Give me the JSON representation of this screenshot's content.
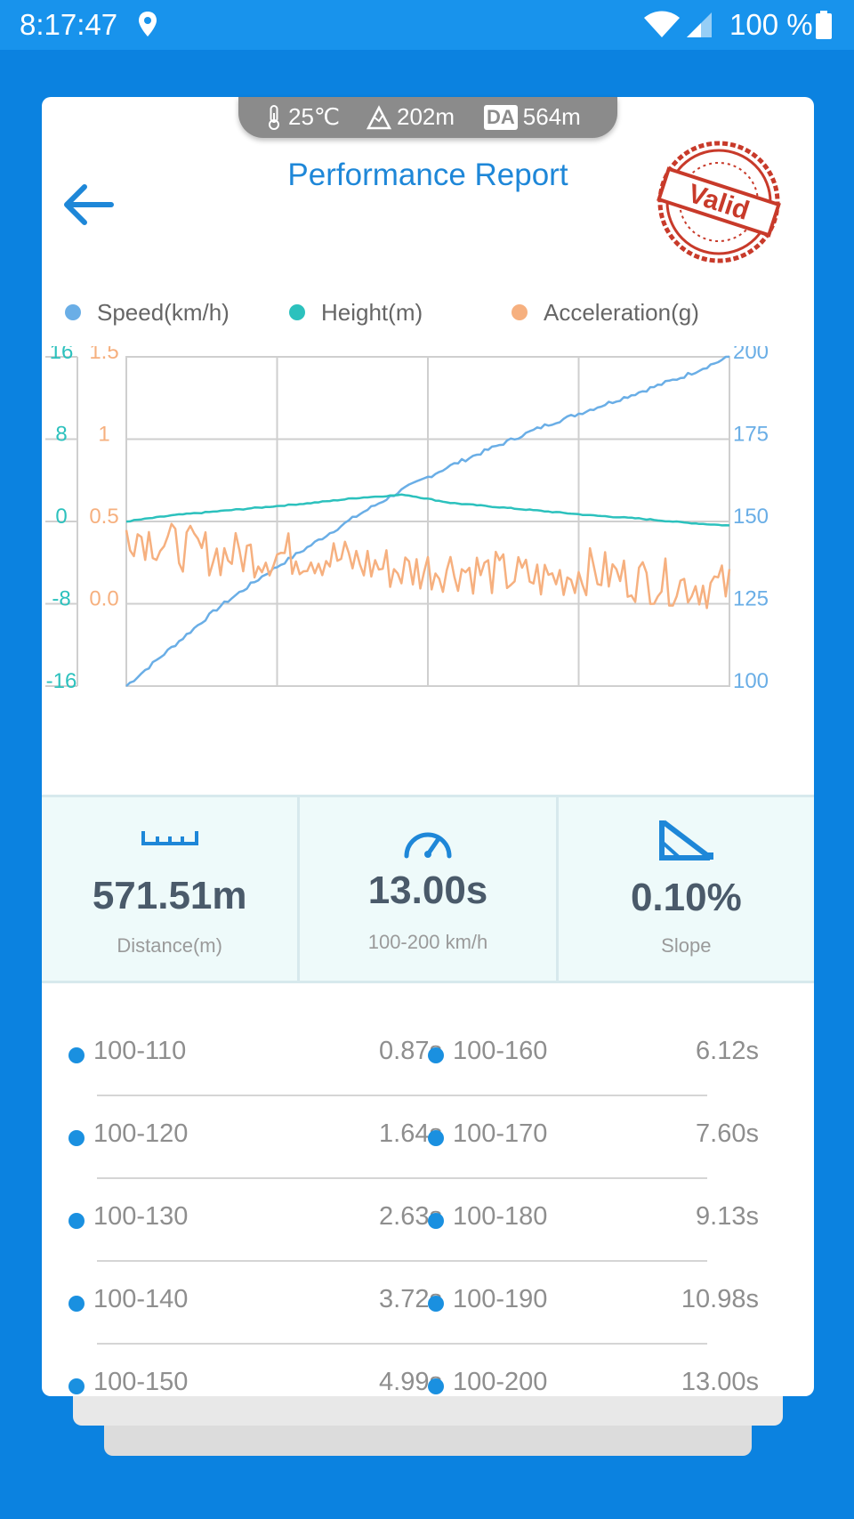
{
  "status_bar": {
    "time": "8:17:47",
    "battery": "100 %"
  },
  "environment": {
    "temperature": "25℃",
    "altitude": "202m",
    "da_label": "DA",
    "density_altitude": "564m"
  },
  "header": {
    "title": "Performance Report",
    "stamp_text": "Valid"
  },
  "legend": [
    {
      "label": "Speed(km/h)",
      "color": "#6aaee6"
    },
    {
      "label": "Height(m)",
      "color": "#2cc1bd"
    },
    {
      "label": "Acceleration(g)",
      "color": "#f6b07f"
    }
  ],
  "chart_data": {
    "type": "line",
    "x": [
      0,
      1,
      2,
      3,
      4,
      5,
      6,
      7,
      8,
      9,
      10,
      11,
      12,
      13
    ],
    "series": [
      {
        "name": "Speed(km/h)",
        "axis": "right",
        "values": [
          100,
          112,
          124,
          134,
          143,
          152,
          160,
          167,
          173,
          179,
          184,
          189,
          194,
          200
        ]
      },
      {
        "name": "Height(m)",
        "axis": "left-outer",
        "values": [
          0,
          0.6,
          1.0,
          1.4,
          1.8,
          2.3,
          2.6,
          1.8,
          1.4,
          1.0,
          0.6,
          0.3,
          -0.1,
          -0.4
        ]
      },
      {
        "name": "Acceleration(g)",
        "axis": "left-inner",
        "values": [
          0.45,
          0.35,
          0.3,
          0.3,
          0.3,
          0.25,
          0.2,
          0.22,
          0.18,
          0.15,
          0.2,
          0.15,
          0.12,
          0.1
        ]
      }
    ],
    "axes": {
      "left_outer": {
        "ticks": [
          "16",
          "8",
          "0",
          "-8",
          "-16"
        ],
        "ylim": [
          -16,
          16
        ],
        "color": "#2cc1bd"
      },
      "left_inner": {
        "ticks": [
          "1.5",
          "1",
          "0.5",
          "0.0"
        ],
        "ylim": [
          -0.5,
          1.5
        ],
        "color": "#f6b07f"
      },
      "right": {
        "ticks": [
          "200",
          "175",
          "150",
          "125",
          "100"
        ],
        "ylim": [
          100,
          200
        ],
        "color": "#6aaee6"
      }
    },
    "grid": true
  },
  "stats": [
    {
      "icon": "ruler-icon",
      "value": "571.51m",
      "label": "Distance(m)"
    },
    {
      "icon": "speedometer-icon",
      "value": "13.00s",
      "label": "100-200 km/h"
    },
    {
      "icon": "slope-icon",
      "value": "0.10%",
      "label": "Slope"
    }
  ],
  "split_times": [
    {
      "left_range": "100-110",
      "left_time": "0.87s",
      "right_range": "100-160",
      "right_time": "6.12s"
    },
    {
      "left_range": "100-120",
      "left_time": "1.64s",
      "right_range": "100-170",
      "right_time": "7.60s"
    },
    {
      "left_range": "100-130",
      "left_time": "2.63s",
      "right_range": "100-180",
      "right_time": "9.13s"
    },
    {
      "left_range": "100-140",
      "left_time": "3.72s",
      "right_range": "100-190",
      "right_time": "10.98s"
    },
    {
      "left_range": "100-150",
      "left_time": "4.99s",
      "right_range": "100-200",
      "right_time": "13.00s"
    }
  ]
}
